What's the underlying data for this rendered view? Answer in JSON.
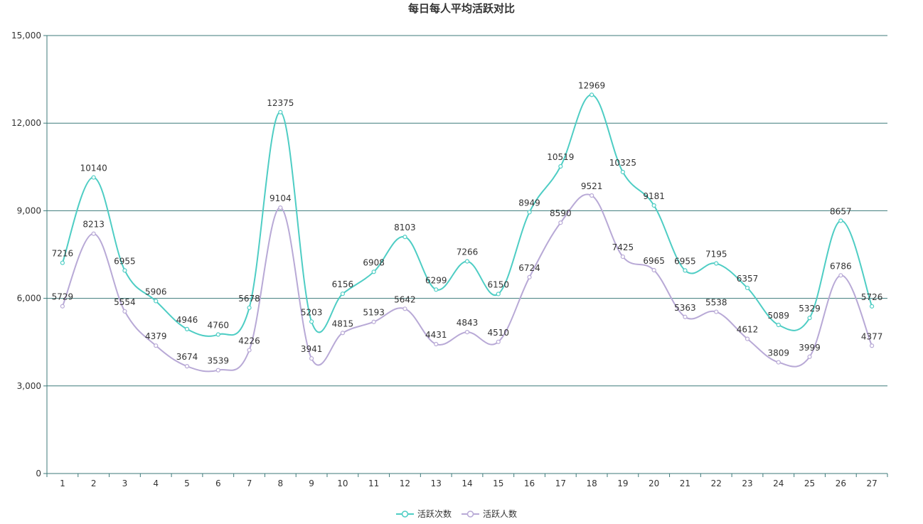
{
  "chart_data": {
    "type": "line",
    "title": "每日每人平均活跃对比",
    "categories": [
      "1",
      "2",
      "3",
      "4",
      "5",
      "6",
      "7",
      "8",
      "9",
      "10",
      "11",
      "12",
      "13",
      "14",
      "15",
      "16",
      "17",
      "18",
      "19",
      "20",
      "21",
      "22",
      "23",
      "24",
      "25",
      "26",
      "27"
    ],
    "y_ticks": [
      "0",
      "3,000",
      "6,000",
      "9,000",
      "12,000",
      "15,000"
    ],
    "ylim": [
      0,
      15000
    ],
    "grid": true,
    "smooth": true,
    "legend_position": "bottom-center",
    "series": [
      {
        "name": "活跃次数",
        "color": "#4ecdc4",
        "values": [
          7216,
          10140,
          6955,
          5906,
          4946,
          4760,
          5678,
          12375,
          5203,
          6156,
          6908,
          8103,
          6299,
          7266,
          6150,
          8949,
          10519,
          12969,
          10325,
          9181,
          6955,
          7195,
          6357,
          5089,
          5329,
          8657,
          5726
        ]
      },
      {
        "name": "活跃人数",
        "color": "#b8a9d6",
        "values": [
          5729,
          8213,
          5554,
          4379,
          3674,
          3539,
          4226,
          9104,
          3941,
          4815,
          5193,
          5642,
          4431,
          4843,
          4510,
          6724,
          8590,
          9521,
          7425,
          6965,
          5363,
          5538,
          4612,
          3809,
          3999,
          6786,
          4377
        ]
      }
    ],
    "axis_color": "#3d7a7a",
    "grid_color": "#3d7a7a"
  }
}
